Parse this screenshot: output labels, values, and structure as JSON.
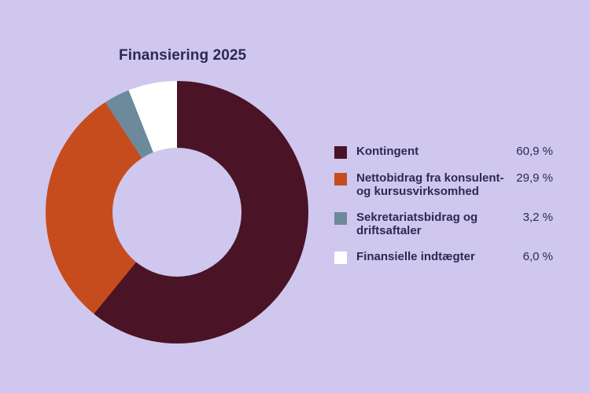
{
  "page": {
    "background_color": "#cfc7ee",
    "text_color": "#2b2a55"
  },
  "chart_data": {
    "type": "pie",
    "subtype": "donut",
    "title": "Finansiering 2025",
    "categories": [
      "Kontingent",
      "Nettobidrag fra konsulent- og kursusvirksomhed",
      "Sekretariatsbidrag og driftsaftaler",
      "Finansielle indtægter"
    ],
    "values": [
      60.9,
      29.9,
      3.2,
      6.0
    ],
    "value_labels": [
      "60,9 %",
      "29,9 %",
      "3,2 %",
      "6,0 %"
    ],
    "colors": [
      "#4a1426",
      "#c64c1e",
      "#6c8a9b",
      "#ffffff"
    ],
    "start_angle_deg": 0,
    "direction": "clockwise",
    "inner_radius_ratio": 0.49,
    "legend_position": "right",
    "grid": false
  },
  "legend": {
    "items": [
      {
        "label": "Kontingent",
        "value": "60,9 %",
        "color": "#4a1426"
      },
      {
        "label": "Nettobidrag fra konsulent-\nog kursusvirksomhed",
        "value": "29,9 %",
        "color": "#c64c1e"
      },
      {
        "label": "Sekretariatsbidrag og\ndriftsaftaler",
        "value": "3,2 %",
        "color": "#6c8a9b"
      },
      {
        "label": "Finansielle indtægter",
        "value": "6,0 %",
        "color": "#ffffff"
      }
    ]
  }
}
